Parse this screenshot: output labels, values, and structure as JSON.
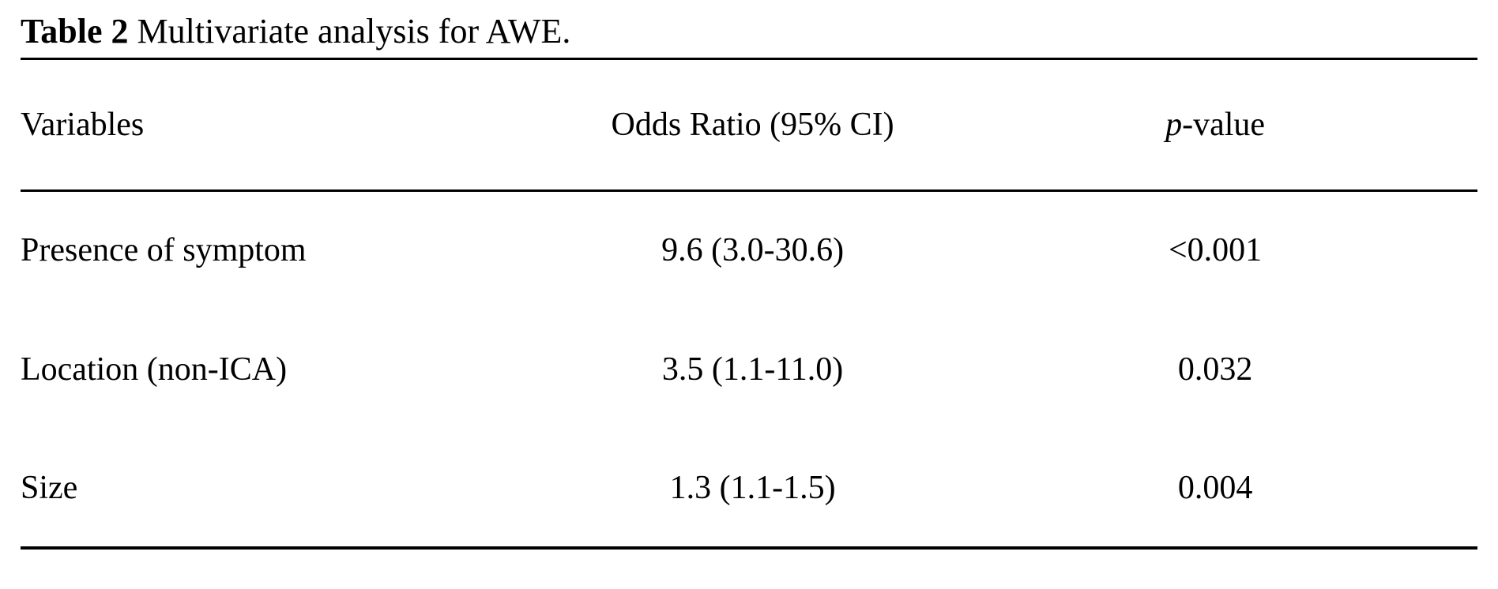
{
  "title": {
    "label": "Table 2",
    "caption": " Multivariate analysis for AWE."
  },
  "table": {
    "headers": [
      {
        "text": "Variables"
      },
      {
        "text": "Odds Ratio (95% CI)"
      },
      {
        "italic": "p",
        "text": "-value"
      }
    ],
    "rows": [
      {
        "variable": "Presence of symptom",
        "odds_ratio": "9.6 (3.0-30.6)",
        "p_value": "<0.001"
      },
      {
        "variable": "Location (non-ICA)",
        "odds_ratio": "3.5 (1.1-11.0)",
        "p_value": "0.032"
      },
      {
        "variable": "Size",
        "odds_ratio": "1.3 (1.1-1.5)",
        "p_value": "0.004"
      }
    ]
  },
  "colors": {
    "text": "#000000",
    "background": "#ffffff",
    "rule": "#000000"
  }
}
